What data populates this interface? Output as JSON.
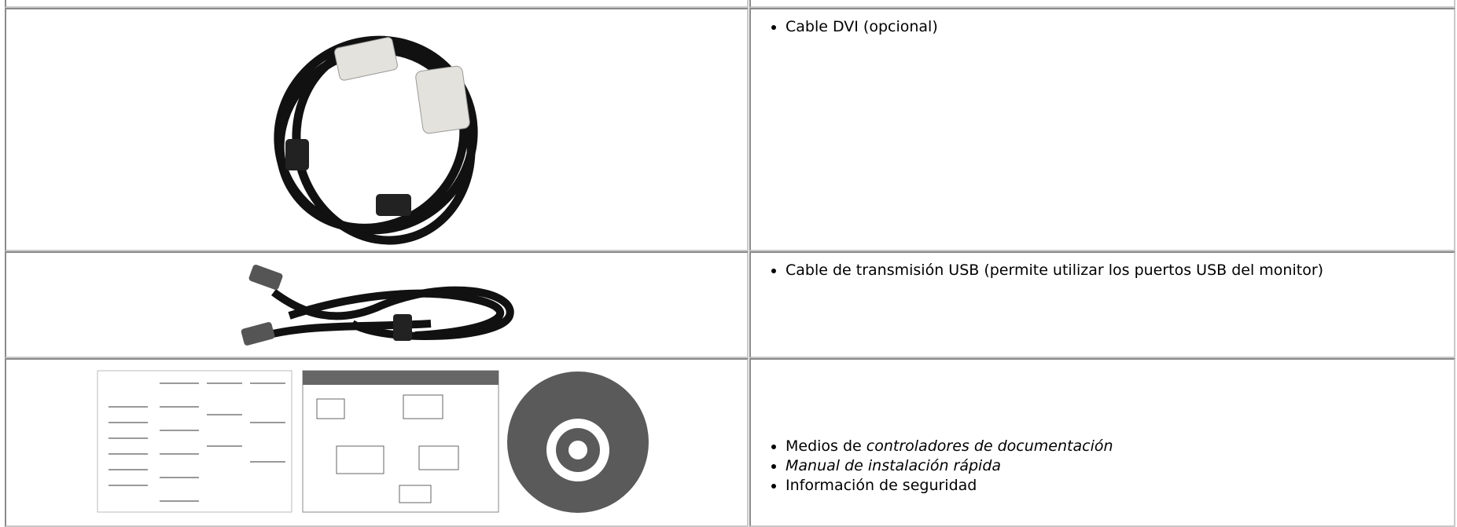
{
  "rows": [
    {
      "items": [
        [
          {
            "text": "Cable DVI (opcional)",
            "italic": false
          }
        ]
      ]
    },
    {
      "items": [
        [
          {
            "text": "Cable de transmisión USB (permite utilizar los puertos USB del monitor)",
            "italic": false
          }
        ]
      ]
    },
    {
      "items": [
        [
          {
            "text": "Medios de ",
            "italic": false
          },
          {
            "text": "controladores de documentación",
            "italic": true
          }
        ],
        [
          {
            "text": "Manual de instalación rápida",
            "italic": true
          }
        ],
        [
          {
            "text": "Información de seguridad",
            "italic": false
          }
        ]
      ]
    }
  ]
}
